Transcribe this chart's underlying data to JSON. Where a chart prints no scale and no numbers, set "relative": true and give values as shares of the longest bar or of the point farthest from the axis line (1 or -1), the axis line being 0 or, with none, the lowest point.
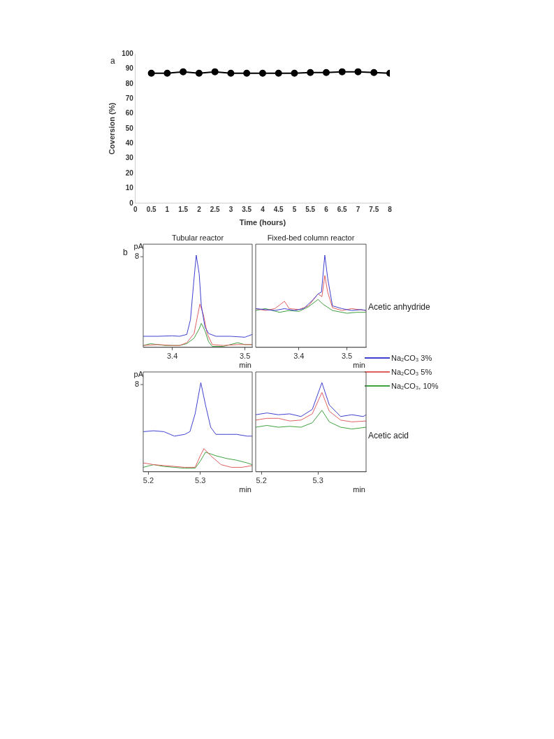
{
  "chart_data": [
    {
      "type": "line",
      "xlabel": "Time (hours)",
      "ylabel": "Coversion (%)",
      "annotations": [
        "a"
      ],
      "x": [
        0.5,
        1,
        1.5,
        2,
        2.5,
        3,
        3.5,
        4,
        4.5,
        5,
        5.5,
        6,
        6.5,
        7,
        7.5,
        8
      ],
      "values": [
        87,
        87,
        88,
        87,
        88,
        87,
        87,
        87,
        87,
        87,
        87.5,
        87.5,
        88,
        88,
        87.5,
        87
      ],
      "color": "#000000",
      "marker": "circle",
      "xlim": [
        0,
        8
      ],
      "xticks": [
        0,
        0.5,
        1,
        1.5,
        2,
        2.5,
        3,
        3.5,
        4,
        4.5,
        5,
        5.5,
        6,
        6.5,
        7,
        7.5,
        8
      ],
      "ylim": [
        0,
        100
      ],
      "yticks": [
        0,
        10,
        20,
        30,
        40,
        50,
        60,
        70,
        80,
        90,
        100
      ],
      "grid": false
    },
    {
      "type": "line",
      "title": "Tubular reactor",
      "xlabel": "min",
      "ylabel": "pA",
      "relative": true,
      "marker": "none",
      "annotations": [
        "b",
        "8"
      ],
      "xlim": [
        3.36,
        3.51
      ],
      "xticks": [
        3.4,
        3.5
      ],
      "series": [
        {
          "color": "#4040d0",
          "x": [
            3.36,
            3.38,
            3.4,
            3.41,
            3.42,
            3.425,
            3.43,
            3.433,
            3.437,
            3.44,
            3.445,
            3.45,
            3.46,
            3.48,
            3.5,
            3.51
          ],
          "values": [
            0.12,
            0.12,
            0.125,
            0.12,
            0.14,
            0.3,
            0.75,
            1.0,
            0.8,
            0.45,
            0.22,
            0.15,
            0.12,
            0.12,
            0.11,
            0.14
          ]
        },
        {
          "color": "#e06060",
          "x": [
            3.36,
            3.38,
            3.4,
            3.41,
            3.42,
            3.43,
            3.435,
            3.438,
            3.443,
            3.448,
            3.455,
            3.47,
            3.49,
            3.51
          ],
          "values": [
            0.02,
            0.03,
            0.02,
            0.02,
            0.05,
            0.15,
            0.35,
            0.47,
            0.35,
            0.15,
            0.03,
            0.02,
            0.03,
            0.03
          ]
        },
        {
          "color": "#40a040",
          "x": [
            3.36,
            3.37,
            3.39,
            3.41,
            3.42,
            3.43,
            3.437,
            3.44,
            3.445,
            3.45,
            3.455,
            3.47,
            3.49,
            3.5,
            3.51
          ],
          "values": [
            0.02,
            0.04,
            0.02,
            0.02,
            0.04,
            0.1,
            0.2,
            0.26,
            0.18,
            0.06,
            0.01,
            0.01,
            0.05,
            0.03,
            0.03
          ]
        }
      ]
    },
    {
      "type": "line",
      "title": "Fixed-bed column reactor",
      "xlabel": "min",
      "relative": true,
      "marker": "none",
      "legend": "right",
      "annotations": [
        "Acetic anhydride"
      ],
      "xlim": [
        3.31,
        3.54
      ],
      "xticks": [
        3.4,
        3.5
      ],
      "series": [
        {
          "name": "Na₂CO₃ 3%",
          "color": "#4040d0",
          "x": [
            3.31,
            3.33,
            3.35,
            3.37,
            3.39,
            3.41,
            3.43,
            3.44,
            3.447,
            3.454,
            3.46,
            3.47,
            3.49,
            3.51,
            3.53,
            3.54
          ],
          "values": [
            0.42,
            0.41,
            0.4,
            0.42,
            0.4,
            0.42,
            0.52,
            0.58,
            0.6,
            1.0,
            0.75,
            0.45,
            0.42,
            0.4,
            0.41,
            0.4
          ]
        },
        {
          "name": "Na₂CO₃ 5%",
          "color": "#e06060",
          "x": [
            3.31,
            3.33,
            3.35,
            3.37,
            3.38,
            3.4,
            3.42,
            3.44,
            3.448,
            3.454,
            3.46,
            3.47,
            3.49,
            3.51,
            3.54
          ],
          "values": [
            0.42,
            0.4,
            0.42,
            0.5,
            0.42,
            0.41,
            0.45,
            0.58,
            0.55,
            0.78,
            0.6,
            0.43,
            0.4,
            0.42,
            0.4
          ]
        },
        {
          "name": "Na₂CO₃, 10%",
          "color": "#40a040",
          "x": [
            3.31,
            3.33,
            3.36,
            3.38,
            3.4,
            3.42,
            3.44,
            3.45,
            3.47,
            3.5,
            3.52,
            3.54
          ],
          "values": [
            0.4,
            0.42,
            0.38,
            0.4,
            0.39,
            0.44,
            0.52,
            0.47,
            0.4,
            0.37,
            0.38,
            0.38
          ]
        }
      ]
    },
    {
      "type": "line",
      "xlabel": "min",
      "ylabel": "pA",
      "relative": true,
      "marker": "none",
      "annotations": [
        "8"
      ],
      "xlim": [
        5.19,
        5.4
      ],
      "xticks": [
        5.2,
        5.3
      ],
      "series": [
        {
          "color": "#4040d0",
          "x": [
            5.19,
            5.21,
            5.23,
            5.25,
            5.27,
            5.28,
            5.29,
            5.301,
            5.31,
            5.32,
            5.33,
            5.35,
            5.37,
            5.39,
            5.4
          ],
          "values": [
            0.45,
            0.46,
            0.45,
            0.4,
            0.42,
            0.45,
            0.65,
            1.0,
            0.75,
            0.5,
            0.42,
            0.42,
            0.42,
            0.4,
            0.4
          ]
        },
        {
          "color": "#e06060",
          "x": [
            5.19,
            5.21,
            5.23,
            5.25,
            5.27,
            5.29,
            5.3,
            5.307,
            5.32,
            5.34,
            5.36,
            5.38,
            5.4
          ],
          "values": [
            0.1,
            0.08,
            0.07,
            0.06,
            0.05,
            0.05,
            0.18,
            0.26,
            0.18,
            0.08,
            0.05,
            0.05,
            0.07
          ]
        },
        {
          "color": "#40a040",
          "x": [
            5.19,
            5.21,
            5.23,
            5.25,
            5.27,
            5.29,
            5.3,
            5.31,
            5.33,
            5.35,
            5.37,
            5.39,
            5.4
          ],
          "values": [
            0.05,
            0.08,
            0.06,
            0.05,
            0.04,
            0.04,
            0.12,
            0.22,
            0.18,
            0.15,
            0.13,
            0.1,
            0.08
          ]
        }
      ]
    },
    {
      "type": "line",
      "xlabel": "min",
      "relative": true,
      "marker": "none",
      "annotations": [
        "Acetic acid"
      ],
      "xlim": [
        5.19,
        5.385
      ],
      "xticks": [
        5.2,
        5.3
      ],
      "series": [
        {
          "color": "#4040d0",
          "x": [
            5.19,
            5.21,
            5.23,
            5.25,
            5.27,
            5.29,
            5.307,
            5.32,
            5.34,
            5.36,
            5.38,
            5.385
          ],
          "values": [
            0.64,
            0.66,
            0.64,
            0.65,
            0.62,
            0.7,
            1.0,
            0.75,
            0.62,
            0.64,
            0.62,
            0.64
          ]
        },
        {
          "color": "#e06060",
          "x": [
            5.19,
            5.21,
            5.23,
            5.25,
            5.27,
            5.29,
            5.307,
            5.32,
            5.34,
            5.36,
            5.385
          ],
          "values": [
            0.58,
            0.6,
            0.6,
            0.57,
            0.58,
            0.65,
            0.89,
            0.68,
            0.58,
            0.56,
            0.57
          ]
        },
        {
          "color": "#40a040",
          "x": [
            5.19,
            5.21,
            5.23,
            5.25,
            5.27,
            5.29,
            5.307,
            5.32,
            5.34,
            5.36,
            5.385
          ],
          "values": [
            0.5,
            0.52,
            0.5,
            0.51,
            0.5,
            0.55,
            0.69,
            0.56,
            0.5,
            0.48,
            0.5
          ]
        }
      ]
    }
  ]
}
